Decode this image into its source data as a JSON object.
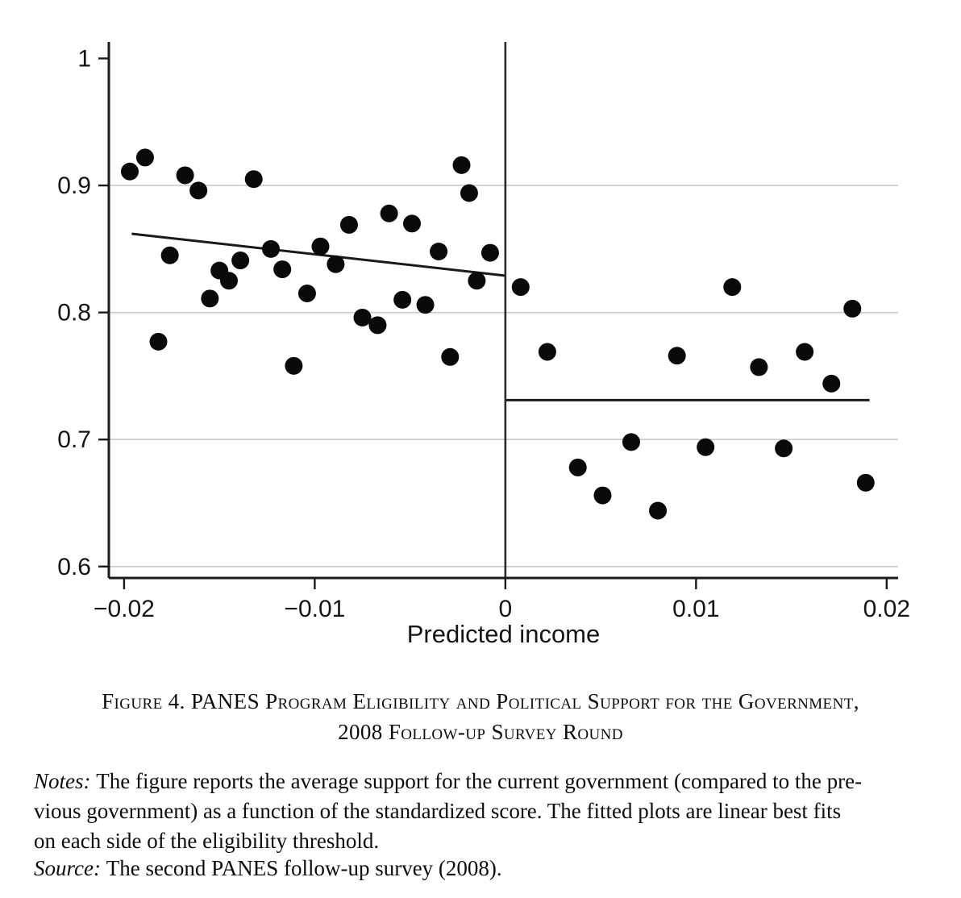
{
  "figure": {
    "caption_line1": "Figure 4. PANES Program Eligibility and Political Support for the Government,",
    "caption_line2": "2008 Follow-up Survey Round",
    "notes_label": "Notes:",
    "notes_lines": [
      "The figure reports the average support for the current government (compared to the pre-",
      "vious government) as a function of the standardized score. The fitted plots are linear best fits",
      "on each side of the eligibility threshold."
    ],
    "source_label": "Source:",
    "source_text": "The second PANES follow-up survey (2008)."
  },
  "chart_data": {
    "type": "scatter",
    "title": "",
    "xlabel": "Predicted income",
    "ylabel": "",
    "xlim": [
      -0.0208,
      0.0206
    ],
    "ylim": [
      0.591,
      1.013
    ],
    "grid": "horizontal-only",
    "legend": "none",
    "x_ticks": {
      "values": [
        -0.02,
        -0.01,
        0,
        0.01,
        0.02
      ],
      "labels": [
        "−0.02",
        "−0.01",
        "0",
        "0.01",
        "0.02"
      ]
    },
    "y_ticks": {
      "values": [
        1,
        0.9,
        0.8,
        0.7,
        0.6
      ],
      "labels": [
        "1",
        "0.9",
        "0.8",
        "0.7",
        "0.6"
      ]
    },
    "gridline_values": [
      0.9,
      0.8,
      0.7,
      0.6
    ],
    "threshold_x": 0,
    "colors": {
      "point": "#0a0a0a",
      "axis": "#1a1a1a",
      "gridline": "#c9c9c9",
      "fit_line": "#1a1a1a",
      "threshold_line": "#2a2a2a"
    },
    "series": [
      {
        "name": "left-of-threshold",
        "points": [
          [
            -0.0197,
            0.911
          ],
          [
            -0.0189,
            0.922
          ],
          [
            -0.0182,
            0.777
          ],
          [
            -0.0176,
            0.845
          ],
          [
            -0.0168,
            0.908
          ],
          [
            -0.0161,
            0.896
          ],
          [
            -0.0155,
            0.811
          ],
          [
            -0.015,
            0.833
          ],
          [
            -0.0145,
            0.825
          ],
          [
            -0.0139,
            0.841
          ],
          [
            -0.0132,
            0.905
          ],
          [
            -0.0123,
            0.85
          ],
          [
            -0.0117,
            0.834
          ],
          [
            -0.0111,
            0.758
          ],
          [
            -0.0104,
            0.815
          ],
          [
            -0.0097,
            0.852
          ],
          [
            -0.0089,
            0.838
          ],
          [
            -0.0082,
            0.869
          ],
          [
            -0.0075,
            0.796
          ],
          [
            -0.0067,
            0.79
          ],
          [
            -0.0061,
            0.878
          ],
          [
            -0.0054,
            0.81
          ],
          [
            -0.0049,
            0.87
          ],
          [
            -0.0042,
            0.806
          ],
          [
            -0.0035,
            0.848
          ],
          [
            -0.0029,
            0.765
          ],
          [
            -0.0023,
            0.916
          ],
          [
            -0.0019,
            0.894
          ],
          [
            -0.0015,
            0.825
          ],
          [
            -0.0008,
            0.847
          ]
        ]
      },
      {
        "name": "right-of-threshold",
        "points": [
          [
            0.0008,
            0.82
          ],
          [
            0.0022,
            0.769
          ],
          [
            0.0038,
            0.678
          ],
          [
            0.0051,
            0.656
          ],
          [
            0.0066,
            0.698
          ],
          [
            0.008,
            0.644
          ],
          [
            0.009,
            0.766
          ],
          [
            0.0105,
            0.694
          ],
          [
            0.0119,
            0.82
          ],
          [
            0.0133,
            0.757
          ],
          [
            0.0146,
            0.693
          ],
          [
            0.0157,
            0.769
          ],
          [
            0.0171,
            0.744
          ],
          [
            0.0182,
            0.803
          ],
          [
            0.0189,
            0.666
          ]
        ]
      }
    ],
    "fit_lines": [
      {
        "name": "left-fit",
        "x1": -0.0196,
        "y1": 0.862,
        "x2": 0.0,
        "y2": 0.829
      },
      {
        "name": "right-fit",
        "x1": 0.0,
        "y1": 0.731,
        "x2": 0.0191,
        "y2": 0.731
      }
    ]
  }
}
